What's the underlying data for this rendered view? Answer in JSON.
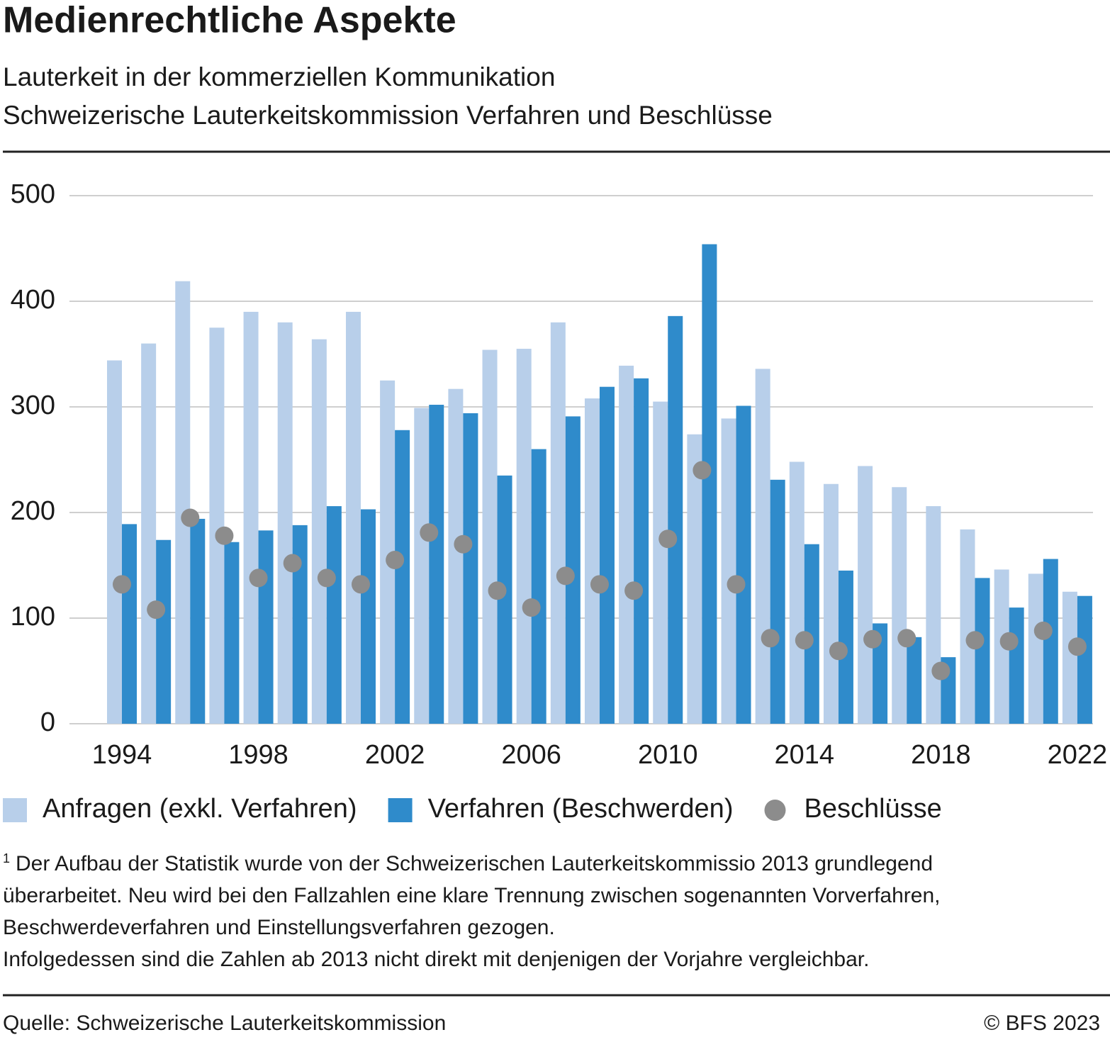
{
  "chart_data": {
    "type": "bar",
    "title": "Medienrechtliche Aspekte",
    "subtitle": [
      "Lauterkeit in der kommerziellen Kommunikation",
      "Schweizerische Lauterkeitskommission Verfahren und Beschlüsse"
    ],
    "categories": [
      "1994",
      null,
      null,
      null,
      "1998",
      null,
      null,
      null,
      "2002",
      null,
      null,
      null,
      "2006",
      null,
      null,
      null,
      "2010",
      null,
      null,
      null,
      "2014",
      null,
      null,
      null,
      "2018",
      null,
      null,
      null,
      "2022"
    ],
    "series": [
      {
        "name": "Anfragen (exkl. Verfahren)",
        "type": "bar",
        "color": "#b8cfea",
        "values": [
          344,
          360,
          419,
          375,
          390,
          380,
          364,
          390,
          325,
          299,
          317,
          354,
          355,
          380,
          308,
          339,
          305,
          274,
          289,
          336,
          248,
          227,
          244,
          224,
          206,
          184,
          146,
          142,
          125
        ]
      },
      {
        "name": "Verfahren (Beschwerden)",
        "type": "bar",
        "color": "#2f8bcb",
        "values": [
          189,
          174,
          194,
          172,
          183,
          188,
          206,
          203,
          278,
          302,
          294,
          235,
          260,
          291,
          319,
          327,
          386,
          454,
          301,
          231,
          170,
          145,
          95,
          82,
          63,
          138,
          110,
          156,
          121
        ]
      },
      {
        "name": "Beschlüsse",
        "type": "scatter",
        "color": "#8c8c8c",
        "values": [
          132,
          108,
          195,
          178,
          138,
          152,
          138,
          132,
          155,
          181,
          170,
          126,
          110,
          140,
          132,
          126,
          175,
          240,
          132,
          81,
          79,
          69,
          80,
          81,
          50,
          79,
          78,
          88,
          73
        ]
      }
    ],
    "ylim": [
      0,
      500
    ],
    "yticks": [
      0,
      100,
      200,
      300,
      400,
      500
    ],
    "grid": true,
    "footnote_marker": "1",
    "footnote": [
      "Der Aufbau der Statistik wurde von der Schweizerischen Lauterkeitskommissio 2013 grundlegend",
      "überarbeitet. Neu wird bei den Fallzahlen eine klare Trennung zwischen sogenannten Vorverfahren,",
      "Beschwerdeverfahren und Einstellungsverfahren gezogen.",
      "Infolgedessen sind die Zahlen ab 2013 nicht direkt mit denjenigen der Vorjahre vergleichbar."
    ],
    "source": "Quelle: Schweizerische Lauterkeitskommission",
    "copyright": "© BFS 2023"
  }
}
